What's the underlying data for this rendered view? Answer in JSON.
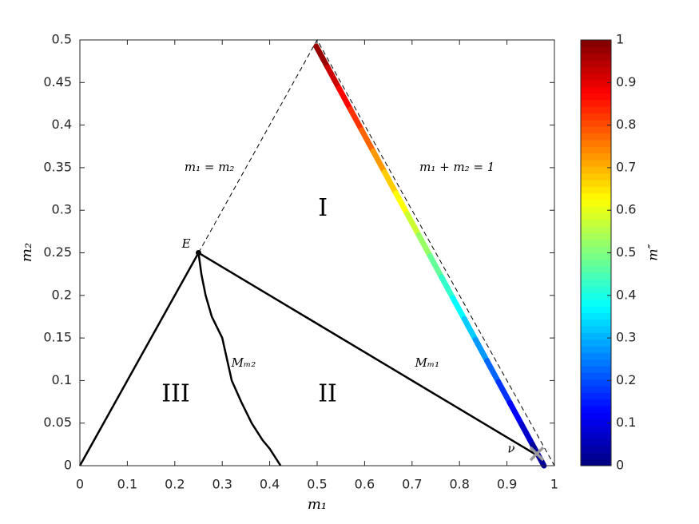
{
  "chart_data": {
    "type": "line",
    "xlabel": "m₁",
    "ylabel": "m₂",
    "xlim": [
      0,
      1
    ],
    "ylim": [
      0,
      0.5
    ],
    "xticks": [
      0,
      0.1,
      0.2,
      0.3,
      0.4,
      0.5,
      0.6,
      0.7,
      0.8,
      0.9,
      1
    ],
    "yticks": [
      0,
      0.05,
      0.1,
      0.15,
      0.2,
      0.25,
      0.3,
      0.35,
      0.4,
      0.45,
      0.5
    ],
    "lines": [
      {
        "x": [
          0.25,
          0.5,
          1
        ],
        "y": [
          0.25,
          0.5,
          0
        ],
        "style": "dashed",
        "color": "#000000"
      },
      {
        "x": [
          0,
          0.25,
          0.97
        ],
        "y": [
          0,
          0.25,
          0.01
        ],
        "style": "solid",
        "color": "#000000"
      },
      {
        "x": [
          0.25,
          0.256,
          0.265,
          0.278,
          0.3,
          0.32,
          0.34,
          0.362,
          0.385,
          0.4,
          0.423
        ],
        "y": [
          0.25,
          0.225,
          0.2,
          0.175,
          0.15,
          0.1,
          0.075,
          0.05,
          0.03,
          0.02,
          0
        ],
        "style": "solid",
        "color": "#000000"
      }
    ],
    "colored_line": {
      "colormap": "jet",
      "x": [
        0.498,
        0.522,
        0.546,
        0.57,
        0.594,
        0.618,
        0.642,
        0.666,
        0.69,
        0.714,
        0.738,
        0.762,
        0.786,
        0.81,
        0.834,
        0.858,
        0.882,
        0.906,
        0.93,
        0.954,
        0.978
      ],
      "y": [
        0.4925,
        0.4679,
        0.4433,
        0.4186,
        0.394,
        0.3694,
        0.3448,
        0.3201,
        0.2955,
        0.2709,
        0.2463,
        0.2216,
        0.197,
        0.1724,
        0.1478,
        0.1231,
        0.0985,
        0.0739,
        0.0493,
        0.0246,
        0
      ],
      "c": [
        1,
        0.95,
        0.9,
        0.85,
        0.8,
        0.75,
        0.7,
        0.65,
        0.6,
        0.55,
        0.5,
        0.45,
        0.4,
        0.35,
        0.3,
        0.25,
        0.2,
        0.15,
        0.1,
        0.05,
        0
      ]
    },
    "points": [
      {
        "x": 0.25,
        "y": 0.25,
        "marker": "dot",
        "color": "#000000"
      },
      {
        "x": 0.963,
        "y": 0.014,
        "marker": "x",
        "color": "#9a9a9a"
      }
    ],
    "annotations": [
      {
        "text": "m₁ = m₂",
        "x": 0.273,
        "y": 0.35
      },
      {
        "text": "m₁ + m₂ = 1",
        "x": 0.795,
        "y": 0.35
      },
      {
        "text": "I",
        "x": 0.512,
        "y": 0.301,
        "size": "large"
      },
      {
        "text": "II",
        "x": 0.522,
        "y": 0.083,
        "size": "large"
      },
      {
        "text": "III",
        "x": 0.202,
        "y": 0.083,
        "size": "large"
      },
      {
        "text": "Mₘ₂",
        "x": 0.345,
        "y": 0.12
      },
      {
        "text": "Mₘ₁",
        "x": 0.732,
        "y": 0.12
      },
      {
        "text": "E",
        "x": 0.224,
        "y": 0.26
      },
      {
        "text": "ν",
        "x": 0.909,
        "y": 0.019
      }
    ],
    "colorbar": {
      "label": "m″",
      "lim": [
        0,
        1
      ],
      "ticks": [
        0,
        0.1,
        0.2,
        0.3,
        0.4,
        0.5,
        0.6,
        0.7,
        0.8,
        0.9,
        1
      ]
    }
  }
}
